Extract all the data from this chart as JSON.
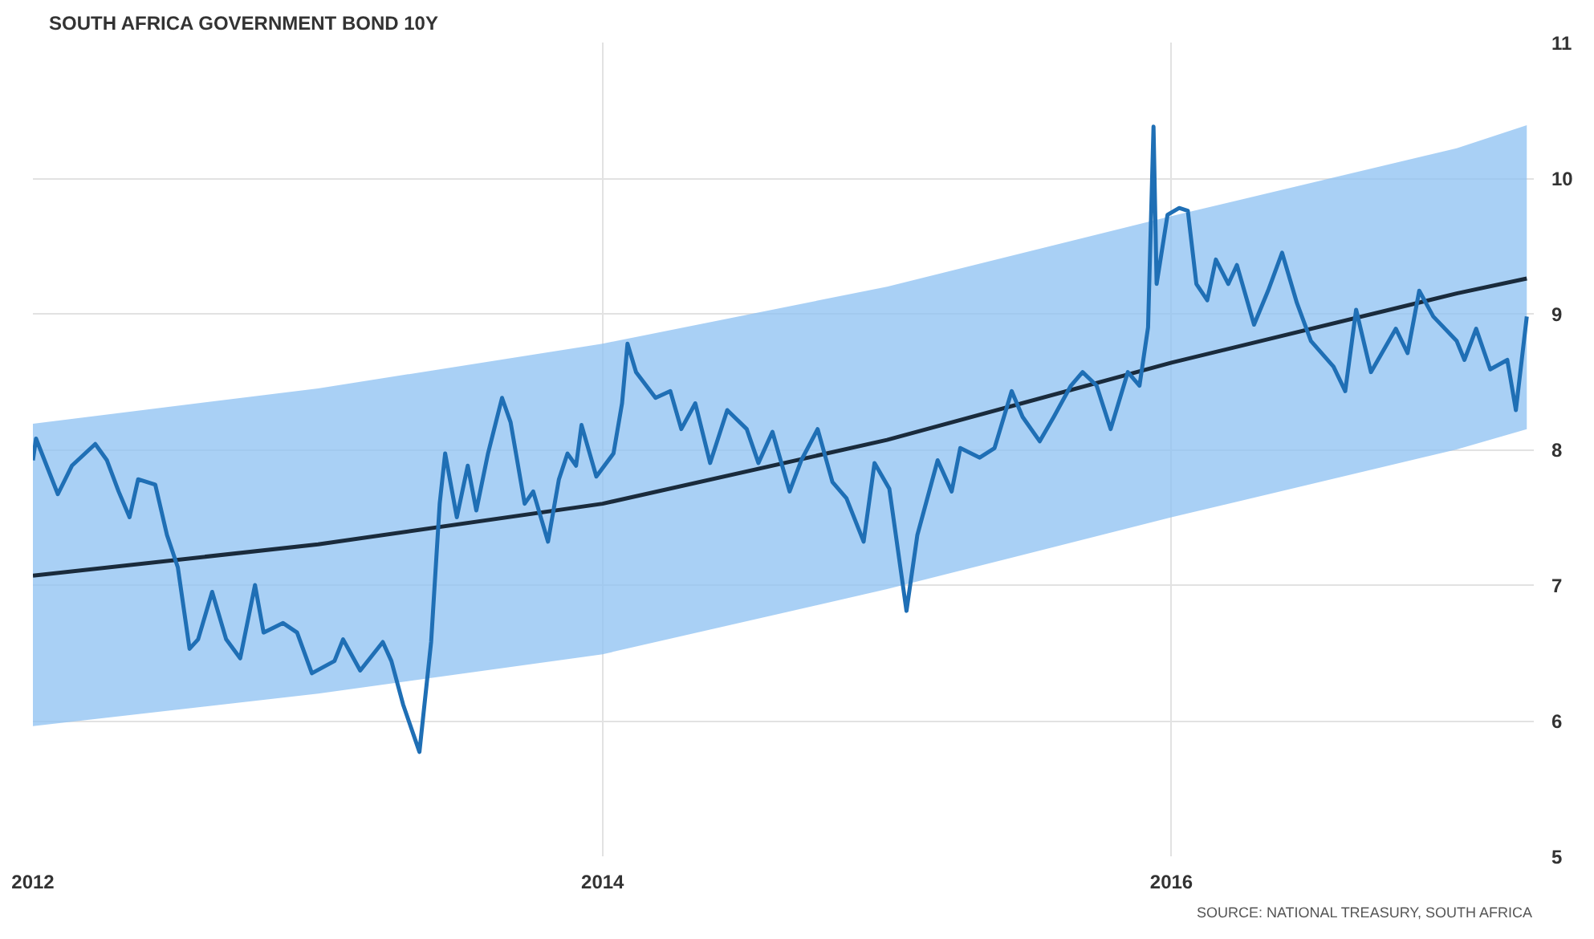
{
  "chart_data": {
    "type": "line",
    "title": "SOUTH AFRICA GOVERNMENT BOND 10Y",
    "annotations": [
      "SOURCE: NATIONAL TREASURY, SOUTH AFRICA"
    ],
    "xlim": [
      "2012-01-01",
      "2017-04-10"
    ],
    "xticks": [
      {
        "value": "2012-01-01",
        "label": "2012"
      },
      {
        "value": "2014-01-01",
        "label": "2014"
      },
      {
        "value": "2016-01-01",
        "label": "2016"
      }
    ],
    "ylim": [
      5,
      11
    ],
    "yticks": [
      5,
      6,
      7,
      8,
      9,
      10,
      11
    ],
    "grid": true,
    "marker": "none",
    "line_style": "solid",
    "series": [
      {
        "color": "#1a2b3c",
        "x": [
          "2012-01-01",
          "2013-01-01",
          "2014-01-01",
          "2015-01-01",
          "2016-01-01",
          "2017-01-01",
          "2017-04-01"
        ],
        "values": [
          7.07,
          7.3,
          7.6,
          8.07,
          8.64,
          9.15,
          9.26
        ],
        "lower": [
          5.96,
          6.2,
          6.49,
          6.97,
          7.5,
          8.0,
          8.15
        ],
        "upper": [
          8.19,
          8.45,
          8.78,
          9.2,
          9.72,
          10.22,
          10.39
        ]
      },
      {
        "color": "#1f6fb5",
        "x": [
          "2012-01-01",
          "2012-01-05",
          "2012-02-02",
          "2012-02-20",
          "2012-03-21",
          "2012-04-05",
          "2012-04-20",
          "2012-05-04",
          "2012-05-15",
          "2012-06-06",
          "2012-06-21",
          "2012-07-05",
          "2012-07-20",
          "2012-07-31",
          "2012-08-18",
          "2012-09-05",
          "2012-09-23",
          "2012-10-12",
          "2012-10-23",
          "2012-11-17",
          "2012-12-05",
          "2012-12-24",
          "2013-01-22",
          "2013-02-02",
          "2013-02-24",
          "2013-03-25",
          "2013-04-05",
          "2013-04-20",
          "2013-05-11",
          "2013-05-26",
          "2013-06-06",
          "2013-06-13",
          "2013-06-28",
          "2013-07-12",
          "2013-07-23",
          "2013-08-07",
          "2013-08-25",
          "2013-09-05",
          "2013-09-23",
          "2013-10-04",
          "2013-10-23",
          "2013-11-06",
          "2013-11-17",
          "2013-11-28",
          "2013-12-05",
          "2013-12-24",
          "2014-01-15",
          "2014-01-26",
          "2014-02-02",
          "2014-02-13",
          "2014-03-10",
          "2014-03-29",
          "2014-04-12",
          "2014-04-30",
          "2014-05-19",
          "2014-06-10",
          "2014-07-05",
          "2014-07-20",
          "2014-08-07",
          "2014-08-29",
          "2014-09-13",
          "2014-10-04",
          "2014-10-23",
          "2014-11-10",
          "2014-12-02",
          "2014-12-16",
          "2015-01-04",
          "2015-01-26",
          "2015-02-09",
          "2015-03-07",
          "2015-03-25",
          "2015-04-05",
          "2015-04-30",
          "2015-05-19",
          "2015-06-10",
          "2015-06-24",
          "2015-07-16",
          "2015-08-03",
          "2015-08-25",
          "2015-09-09",
          "2015-09-27",
          "2015-10-15",
          "2015-11-06",
          "2015-11-21",
          "2015-12-02",
          "2015-12-09",
          "2015-12-13",
          "2015-12-27",
          "2016-01-11",
          "2016-01-22",
          "2016-02-02",
          "2016-02-16",
          "2016-02-27",
          "2016-03-14",
          "2016-03-25",
          "2016-04-16",
          "2016-05-04",
          "2016-05-22",
          "2016-06-10",
          "2016-06-28",
          "2016-07-27",
          "2016-08-11",
          "2016-08-25",
          "2016-09-13",
          "2016-10-01",
          "2016-10-15",
          "2016-10-30",
          "2016-11-14",
          "2016-12-02",
          "2017-01-01",
          "2017-01-11",
          "2017-01-26",
          "2017-02-13",
          "2017-03-07",
          "2017-03-18",
          "2017-04-01"
        ],
        "values": [
          7.92,
          8.08,
          7.67,
          7.88,
          8.04,
          7.92,
          7.69,
          7.5,
          7.78,
          7.74,
          7.37,
          7.13,
          6.53,
          6.6,
          6.95,
          6.6,
          6.46,
          7.0,
          6.65,
          6.72,
          6.65,
          6.35,
          6.44,
          6.6,
          6.37,
          6.58,
          6.44,
          6.12,
          5.77,
          6.58,
          7.6,
          7.97,
          7.5,
          7.88,
          7.55,
          7.97,
          8.38,
          8.2,
          7.6,
          7.69,
          7.32,
          7.78,
          7.97,
          7.88,
          8.18,
          7.8,
          7.97,
          8.34,
          8.78,
          8.57,
          8.38,
          8.43,
          8.15,
          8.34,
          7.9,
          8.29,
          8.15,
          7.9,
          8.13,
          7.69,
          7.92,
          8.15,
          7.76,
          7.64,
          7.32,
          7.9,
          7.71,
          6.81,
          7.37,
          7.92,
          7.69,
          8.01,
          7.94,
          8.01,
          8.43,
          8.24,
          8.06,
          8.24,
          8.47,
          8.57,
          8.47,
          8.15,
          8.57,
          8.47,
          8.9,
          10.38,
          9.22,
          9.73,
          9.78,
          9.76,
          9.22,
          9.1,
          9.4,
          9.22,
          9.36,
          8.92,
          9.17,
          9.45,
          9.08,
          8.8,
          8.61,
          8.43,
          9.03,
          8.57,
          8.75,
          8.89,
          8.71,
          9.17,
          8.98,
          8.8,
          8.66,
          8.89,
          8.59,
          8.66,
          8.29,
          8.98
        ]
      }
    ]
  }
}
